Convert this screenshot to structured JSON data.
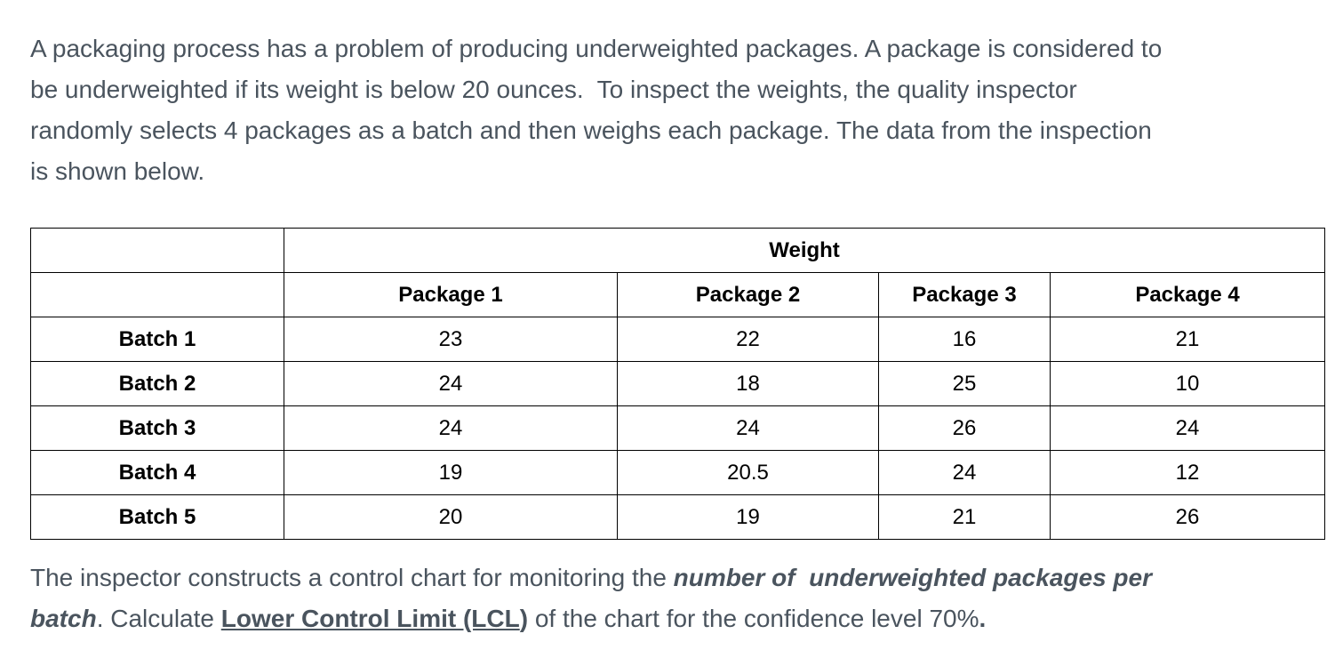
{
  "colors": {
    "paragraph_text": "#4a545e",
    "table_text": "#000000",
    "table_border": "#000000",
    "background": "#ffffff"
  },
  "intro": {
    "lines": [
      "A packaging process has a problem of producing underweighted packages. A package is considered to",
      "be underweighted if its weight is below 20 ounces.  To inspect the weights, the quality inspector",
      "randomly selects 4 packages as a batch and then weighs each package. The data from the inspection",
      "is shown below."
    ]
  },
  "table": {
    "weight_header": "Weight",
    "column_headers": [
      "Package 1",
      "Package 2",
      "Package 3",
      "Package 4"
    ],
    "rows": [
      {
        "label": "Batch 1",
        "values": [
          "23",
          "22",
          "16",
          "21"
        ]
      },
      {
        "label": "Batch 2",
        "values": [
          "24",
          "18",
          "25",
          "10"
        ]
      },
      {
        "label": "Batch 3",
        "values": [
          "24",
          "24",
          "26",
          "24"
        ]
      },
      {
        "label": "Batch 4",
        "values": [
          "19",
          "20.5",
          "24",
          "12"
        ]
      },
      {
        "label": "Batch 5",
        "values": [
          "20",
          "19",
          "21",
          "26"
        ]
      }
    ]
  },
  "question": {
    "lines": [
      {
        "segments": [
          {
            "text": "The inspector constructs a control chart for monitoring the ",
            "style": "normal"
          },
          {
            "text": "number of  underweighted packages per",
            "style": "bold-italic"
          }
        ]
      },
      {
        "segments": [
          {
            "text": "batch",
            "style": "bold-italic"
          },
          {
            "text": ". Calculate ",
            "style": "normal"
          },
          {
            "text": "Lower Control Limit (LCL",
            "style": "bold-underline"
          },
          {
            "text": ")",
            "style": "bold"
          },
          {
            "text": " of the chart for the confidence level 70%",
            "style": "normal"
          },
          {
            "text": ".",
            "style": "bold"
          }
        ]
      }
    ]
  }
}
